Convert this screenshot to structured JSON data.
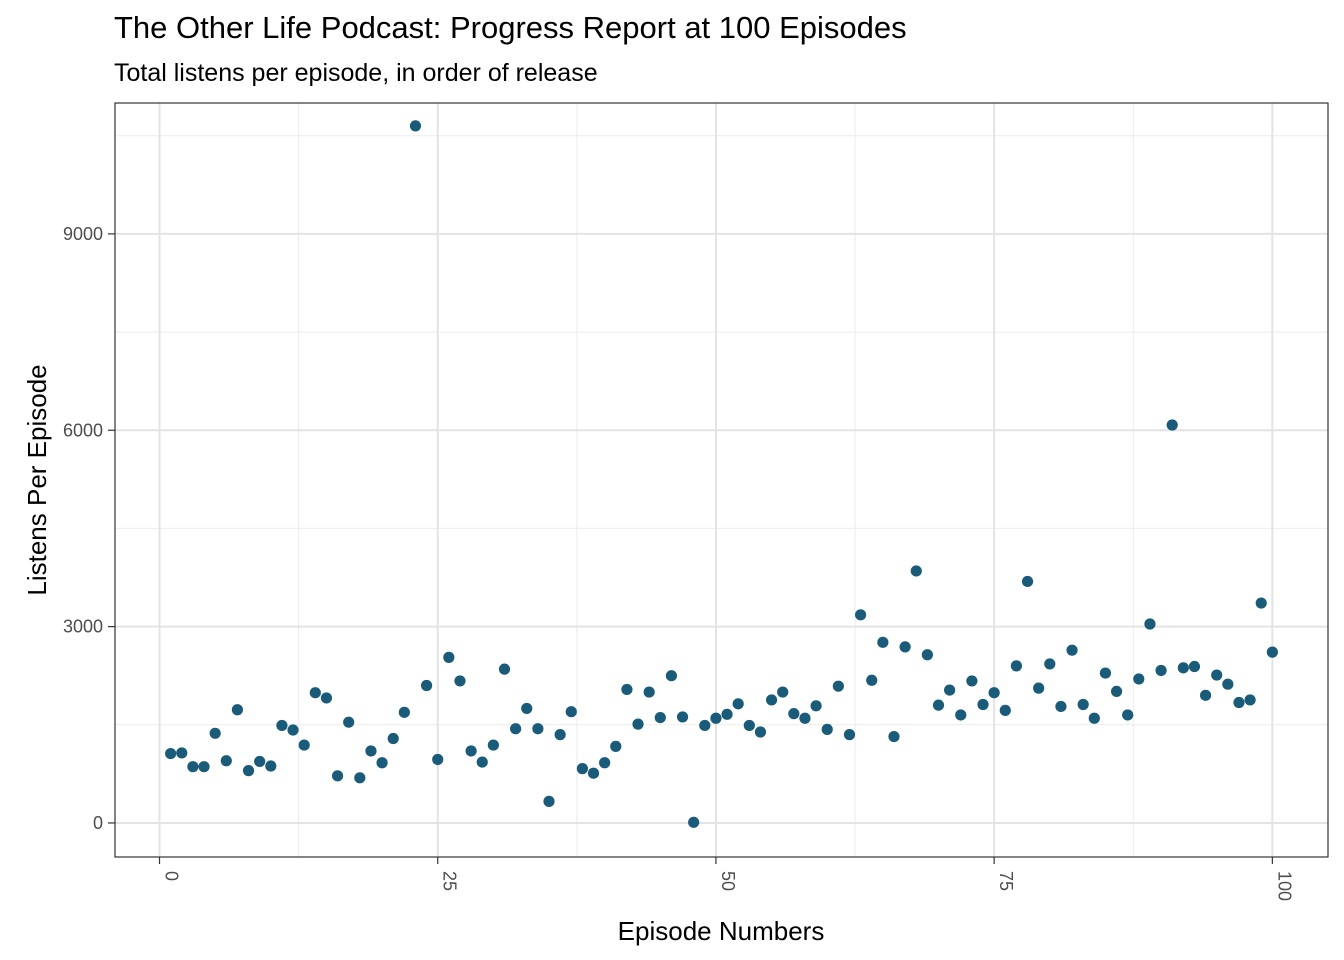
{
  "chart_data": {
    "type": "scatter",
    "title": "The Other Life Podcast: Progress Report at 100 Episodes",
    "subtitle": "Total listens per episode, in order of release",
    "xlabel": "Episode Numbers",
    "ylabel": "Listens Per Episode",
    "xlim": [
      -4,
      105
    ],
    "ylim": [
      -520,
      11000
    ],
    "x_ticks": [
      0,
      25,
      50,
      75,
      100
    ],
    "x_tick_labels": [
      "0",
      "25",
      "50",
      "75",
      "100"
    ],
    "y_ticks": [
      0,
      3000,
      6000,
      9000
    ],
    "y_tick_labels": [
      "0",
      "3000",
      "6000",
      "9000"
    ],
    "x_minor": [
      12.5,
      37.5,
      62.5,
      87.5
    ],
    "y_minor": [
      1500,
      4500,
      7500,
      10500
    ],
    "grid": true,
    "point_color": "#1a5b7a",
    "points": [
      [
        1,
        1060
      ],
      [
        2,
        1070
      ],
      [
        3,
        860
      ],
      [
        4,
        860
      ],
      [
        5,
        1370
      ],
      [
        6,
        950
      ],
      [
        7,
        1730
      ],
      [
        8,
        800
      ],
      [
        9,
        940
      ],
      [
        10,
        870
      ],
      [
        11,
        1490
      ],
      [
        12,
        1420
      ],
      [
        13,
        1190
      ],
      [
        14,
        1990
      ],
      [
        15,
        1910
      ],
      [
        16,
        720
      ],
      [
        17,
        1540
      ],
      [
        18,
        690
      ],
      [
        19,
        1100
      ],
      [
        20,
        920
      ],
      [
        21,
        1290
      ],
      [
        22,
        1690
      ],
      [
        23,
        10650
      ],
      [
        24,
        2100
      ],
      [
        25,
        970
      ],
      [
        26,
        2530
      ],
      [
        27,
        2170
      ],
      [
        28,
        1100
      ],
      [
        29,
        930
      ],
      [
        30,
        1190
      ],
      [
        31,
        2350
      ],
      [
        32,
        1440
      ],
      [
        33,
        1750
      ],
      [
        34,
        1440
      ],
      [
        35,
        330
      ],
      [
        36,
        1350
      ],
      [
        37,
        1700
      ],
      [
        38,
        830
      ],
      [
        39,
        760
      ],
      [
        40,
        920
      ],
      [
        41,
        1170
      ],
      [
        42,
        2040
      ],
      [
        43,
        1510
      ],
      [
        44,
        2000
      ],
      [
        45,
        1610
      ],
      [
        46,
        2250
      ],
      [
        47,
        1620
      ],
      [
        48,
        10
      ],
      [
        49,
        1490
      ],
      [
        50,
        1600
      ],
      [
        51,
        1660
      ],
      [
        52,
        1820
      ],
      [
        53,
        1490
      ],
      [
        54,
        1390
      ],
      [
        55,
        1880
      ],
      [
        56,
        2000
      ],
      [
        57,
        1670
      ],
      [
        58,
        1600
      ],
      [
        59,
        1790
      ],
      [
        60,
        1430
      ],
      [
        61,
        2090
      ],
      [
        62,
        1350
      ],
      [
        63,
        3180
      ],
      [
        64,
        2180
      ],
      [
        65,
        2760
      ],
      [
        66,
        1320
      ],
      [
        67,
        2690
      ],
      [
        68,
        3850
      ],
      [
        69,
        2570
      ],
      [
        70,
        1800
      ],
      [
        71,
        2030
      ],
      [
        72,
        1650
      ],
      [
        73,
        2170
      ],
      [
        74,
        1810
      ],
      [
        75,
        1990
      ],
      [
        76,
        1720
      ],
      [
        77,
        2400
      ],
      [
        78,
        3690
      ],
      [
        79,
        2060
      ],
      [
        80,
        2430
      ],
      [
        81,
        1780
      ],
      [
        82,
        2640
      ],
      [
        83,
        1810
      ],
      [
        84,
        1600
      ],
      [
        85,
        2290
      ],
      [
        86,
        2010
      ],
      [
        87,
        1650
      ],
      [
        88,
        2200
      ],
      [
        89,
        3040
      ],
      [
        90,
        2330
      ],
      [
        91,
        6080
      ],
      [
        92,
        2370
      ],
      [
        93,
        2390
      ],
      [
        94,
        1950
      ],
      [
        95,
        2260
      ],
      [
        96,
        2120
      ],
      [
        97,
        1840
      ],
      [
        98,
        1880
      ],
      [
        99,
        3360
      ],
      [
        100,
        2610
      ]
    ]
  }
}
